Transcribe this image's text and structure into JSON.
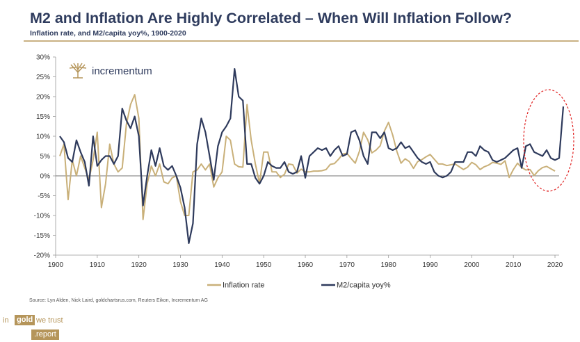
{
  "page": {
    "title": "M2 and Inflation Are Highly Correlated – When Will Inflation Follow?",
    "subtitle": "Inflation rate, and M2/capita yoy%, 1900-2020",
    "source": "Source: Lyn Alden, Nick Laird, goldchartsrus.com, Reuters Eikon, Incrementum AG",
    "logo_text": "incrementum",
    "footer_brand": {
      "in": "in",
      "gold": "gold",
      "we_trust": "we trust",
      "report": ".report"
    }
  },
  "colors": {
    "inflation": "#c9b079",
    "m2": "#2e3a5c",
    "highlight": "#e02020",
    "brand_gold": "#b5955a"
  },
  "chart_data": {
    "type": "line",
    "title": "M2 and Inflation Are Highly Correlated – When Will Inflation Follow?",
    "xlabel": "",
    "ylabel": "",
    "xlim": [
      1900,
      2021
    ],
    "ylim": [
      -20,
      30
    ],
    "x_ticks": [
      1900,
      1910,
      1920,
      1930,
      1940,
      1950,
      1960,
      1970,
      1980,
      1990,
      2000,
      2010,
      2020
    ],
    "y_ticks": [
      -20,
      -15,
      -10,
      -5,
      0,
      5,
      10,
      15,
      20,
      25,
      30
    ],
    "y_tick_labels": [
      "-20%",
      "-15%",
      "-10%",
      "-5%",
      "0%",
      "5%",
      "10%",
      "15%",
      "20%",
      "25%",
      "30%"
    ],
    "legend_position": "bottom-center",
    "annotation": "red dashed ellipse highlighting 2012-2020 M2 surge",
    "series": [
      {
        "name": "Inflation rate",
        "x_start": 1901,
        "values": [
          5,
          8,
          -6,
          4,
          0,
          5,
          2,
          -1,
          4,
          11,
          -8,
          -2,
          8,
          3,
          1,
          2,
          13,
          18,
          20.5,
          14.5,
          -11,
          -2,
          2.5,
          0,
          3,
          -1.5,
          -2,
          -0.5,
          0,
          -6.5,
          -10,
          -10,
          1,
          1.5,
          3,
          1.5,
          3,
          -2.8,
          -0.5,
          1,
          10,
          9,
          3,
          2.3,
          2.2,
          18,
          9,
          3,
          -1.9,
          6,
          6,
          1,
          1,
          -0.4,
          0.4,
          3,
          2.8,
          0.7,
          1.7,
          1,
          1,
          1.2,
          1.2,
          1.3,
          1.6,
          2.9,
          3.1,
          4.2,
          5.5,
          5.7,
          4.4,
          3.2,
          6.2,
          11,
          9.1,
          5.8,
          6.5,
          7.6,
          11.3,
          13.5,
          10.3,
          6.2,
          3.2,
          4.3,
          3.6,
          1.9,
          3.6,
          4.1,
          4.8,
          5.4,
          4.2,
          3,
          3,
          2.6,
          2.8,
          3,
          2.3,
          1.6,
          2.2,
          3.4,
          2.8,
          1.6,
          2.3,
          2.7,
          3.4,
          3.2,
          2.9,
          3.8,
          -0.4,
          1.6,
          3.2,
          2.1,
          1.5,
          1.6,
          0.1,
          1.3,
          2.1,
          2.4,
          1.8,
          1.2
        ],
        "color_key": "inflation"
      },
      {
        "name": "M2/capita yoy%",
        "x_start": 1901,
        "values": [
          10,
          8.5,
          4.5,
          3.5,
          9,
          6,
          3.5,
          -2.5,
          10,
          2.5,
          4,
          5,
          5,
          3,
          5,
          17,
          14,
          12,
          15,
          10,
          -7.5,
          0,
          6.5,
          2.5,
          7,
          2.5,
          1.5,
          2.5,
          0,
          -3,
          -8,
          -17,
          -12,
          8,
          14.5,
          11,
          5,
          -1,
          7.5,
          11,
          12.5,
          14.5,
          27,
          20,
          19,
          3,
          3,
          -0.5,
          -2,
          0,
          3.5,
          2.5,
          2,
          2,
          3.5,
          1,
          0.5,
          1,
          5,
          -0.5,
          5,
          6,
          7,
          6.5,
          7,
          5,
          6.5,
          7.5,
          5,
          5.5,
          11,
          11.5,
          9,
          5,
          3,
          11,
          11,
          9.5,
          11,
          7,
          6.5,
          7,
          8.5,
          7,
          7.5,
          6,
          4.5,
          3.5,
          3,
          3.5,
          1,
          0,
          -0.4,
          0,
          1,
          3.5,
          3.5,
          3.5,
          6,
          6,
          5,
          7.5,
          6.5,
          6,
          4,
          3.5,
          4,
          4.5,
          5.5,
          6.5,
          7,
          2,
          7.5,
          8,
          6,
          5.5,
          5,
          6.5,
          4.5,
          4,
          4.5,
          17.5
        ],
        "color_key": "m2"
      }
    ]
  }
}
